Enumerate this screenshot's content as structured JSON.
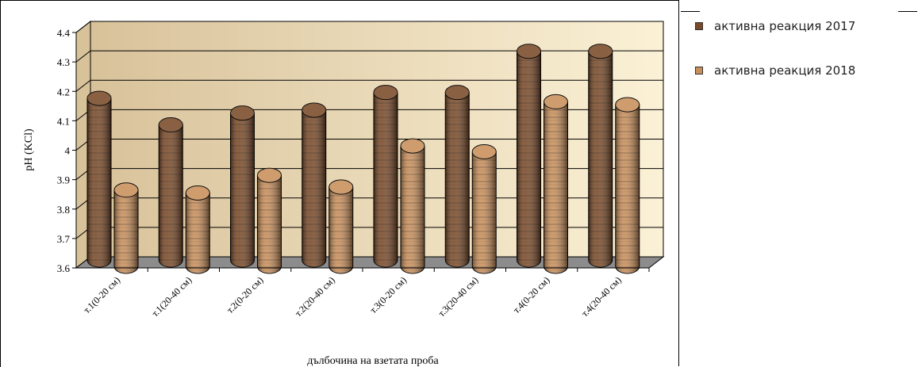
{
  "chart_data": {
    "type": "bar",
    "categories": [
      "т.1(0-20 см)",
      "т.1(20-40 см)",
      "т.2(0-20 см)",
      "т.2(20-40 см)",
      "т.3(0-20 см)",
      "т.3(20-40 см)",
      "т.4(0-20 см)",
      "т.4(20-40 см)"
    ],
    "series": [
      {
        "name": "активна реакция 2017",
        "values": [
          4.16,
          4.07,
          4.11,
          4.12,
          4.18,
          4.18,
          4.32,
          4.32
        ],
        "color": "#7a4a28"
      },
      {
        "name": "активна реакция 2018",
        "values": [
          3.87,
          3.86,
          3.92,
          3.88,
          4.02,
          4.0,
          4.17,
          4.16
        ],
        "color": "#c98f5a"
      }
    ],
    "xlabel": "дълбочина на взетата проба",
    "ylabel": "pH (KCl)",
    "ylim": [
      3.6,
      4.4
    ],
    "yticks": [
      "3.6",
      "3.7",
      "3.8",
      "3.9",
      "4",
      "4.1",
      "4.2",
      "4.3",
      "4.4"
    ],
    "grid": true,
    "legend_position": "right",
    "colors": {
      "wall_left": "#d8c29a",
      "wall_right": "#fbf1d6",
      "floor": "#8c8c8c"
    }
  }
}
